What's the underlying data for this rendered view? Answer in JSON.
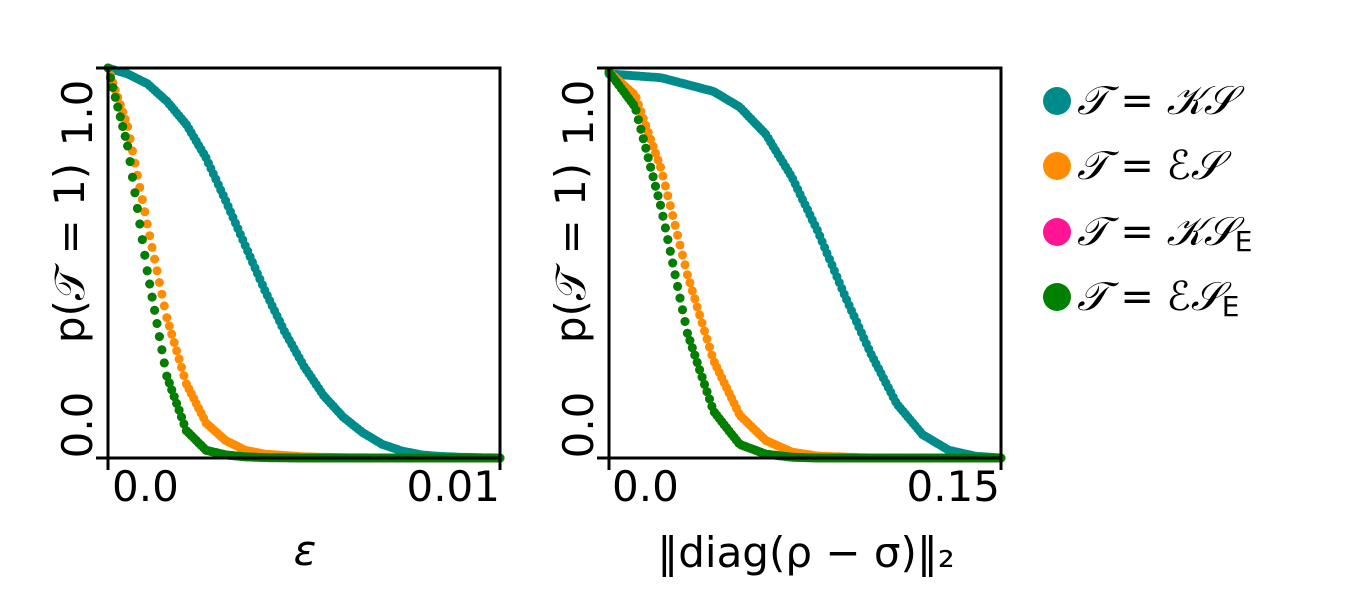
{
  "chart_data": [
    {
      "type": "scatter",
      "xlabel": "ε",
      "ylabel": "p(𝒯 = 1)",
      "xlim": [
        0.0,
        0.01
      ],
      "ylim": [
        0.0,
        1.0
      ],
      "xticks": [
        "0.0",
        "0.01"
      ],
      "yticks": [
        "0.0",
        "1.0"
      ],
      "grid": false,
      "series": [
        {
          "name": "𝒯 = 𝒦𝒮",
          "color": "#008b8b",
          "x": [
            0.0,
            0.0005,
            0.001,
            0.0015,
            0.002,
            0.0025,
            0.003,
            0.0035,
            0.004,
            0.0045,
            0.005,
            0.0055,
            0.006,
            0.0065,
            0.007,
            0.0075,
            0.008,
            0.0085,
            0.009,
            0.0095,
            0.01
          ],
          "y": [
            1.0,
            0.985,
            0.96,
            0.915,
            0.855,
            0.77,
            0.66,
            0.545,
            0.43,
            0.325,
            0.235,
            0.16,
            0.105,
            0.065,
            0.035,
            0.018,
            0.008,
            0.004,
            0.002,
            0.001,
            0.0
          ]
        },
        {
          "name": "𝒯 = ℰ𝒮",
          "color": "#ff8c00",
          "x": [
            0.0,
            0.0005,
            0.001,
            0.0015,
            0.002,
            0.0025,
            0.003,
            0.0035,
            0.004,
            0.005,
            0.006,
            0.007,
            0.008,
            0.01
          ],
          "y": [
            1.0,
            0.85,
            0.6,
            0.36,
            0.19,
            0.09,
            0.045,
            0.02,
            0.01,
            0.003,
            0.001,
            0.0,
            0.0,
            0.0
          ]
        },
        {
          "name": "𝒯 = 𝒦𝒮_E",
          "color": "#ff1493",
          "x": [
            0.0,
            0.0005,
            0.001,
            0.0015,
            0.002,
            0.0025,
            0.003,
            0.0035,
            0.004,
            0.005,
            0.006,
            0.008,
            0.01
          ],
          "y": [
            1.0,
            0.8,
            0.48,
            0.21,
            0.07,
            0.02,
            0.008,
            0.003,
            0.001,
            0.0,
            0.0,
            0.0,
            0.0
          ]
        },
        {
          "name": "𝒯 = ℰ𝒮_E",
          "color": "#008000",
          "x": [
            0.0,
            0.0005,
            0.001,
            0.0015,
            0.002,
            0.0025,
            0.003,
            0.0035,
            0.004,
            0.005,
            0.006,
            0.008,
            0.01
          ],
          "y": [
            1.0,
            0.8,
            0.48,
            0.21,
            0.07,
            0.02,
            0.008,
            0.003,
            0.001,
            0.0,
            0.0,
            0.0,
            0.0
          ]
        }
      ]
    },
    {
      "type": "scatter",
      "xlabel": "‖diag(ρ − σ)‖₂",
      "ylabel": "p(𝒯 = 1)",
      "xlim": [
        0.0,
        0.15
      ],
      "ylim": [
        0.0,
        1.0
      ],
      "xticks": [
        "0.0",
        "0.15"
      ],
      "yticks": [
        "0.0",
        "1.0"
      ],
      "grid": false,
      "series": [
        {
          "name": "𝒯 = 𝒦𝒮",
          "color": "#008b8b",
          "x": [
            0.0,
            0.02,
            0.04,
            0.05,
            0.06,
            0.07,
            0.08,
            0.09,
            0.1,
            0.11,
            0.12,
            0.13,
            0.14,
            0.15
          ],
          "y": [
            0.985,
            0.975,
            0.94,
            0.9,
            0.83,
            0.72,
            0.58,
            0.42,
            0.27,
            0.14,
            0.06,
            0.02,
            0.005,
            0.0
          ]
        },
        {
          "name": "𝒯 = ℰ𝒮",
          "color": "#ff8c00",
          "x": [
            0.0,
            0.01,
            0.02,
            0.03,
            0.04,
            0.05,
            0.06,
            0.07,
            0.08,
            0.1,
            0.15
          ],
          "y": [
            0.99,
            0.93,
            0.74,
            0.47,
            0.25,
            0.11,
            0.045,
            0.015,
            0.005,
            0.0,
            0.0
          ]
        },
        {
          "name": "𝒯 = 𝒦𝒮_E",
          "color": "#ff1493",
          "x": [
            0.0,
            0.01,
            0.02,
            0.03,
            0.04,
            0.05,
            0.06,
            0.07,
            0.08,
            0.1,
            0.15
          ],
          "y": [
            0.99,
            0.9,
            0.64,
            0.32,
            0.12,
            0.035,
            0.01,
            0.002,
            0.0,
            0.0,
            0.0
          ]
        },
        {
          "name": "𝒯 = ℰ𝒮_E",
          "color": "#008000",
          "x": [
            0.0,
            0.01,
            0.02,
            0.03,
            0.04,
            0.05,
            0.06,
            0.07,
            0.08,
            0.1,
            0.15
          ],
          "y": [
            0.99,
            0.9,
            0.64,
            0.32,
            0.12,
            0.035,
            0.01,
            0.002,
            0.0,
            0.0,
            0.0
          ]
        }
      ]
    }
  ],
  "legend": {
    "placement": "right",
    "entries": [
      {
        "prefix": "𝒯 = 𝒦𝒮",
        "subscript": "",
        "color": "#008b8b"
      },
      {
        "prefix": "𝒯 = ℰ𝒮",
        "subscript": "",
        "color": "#ff8c00"
      },
      {
        "prefix": "𝒯 = 𝒦𝒮",
        "subscript": "E",
        "color": "#ff1493"
      },
      {
        "prefix": "𝒯 = ℰ𝒮",
        "subscript": "E",
        "color": "#008000"
      }
    ]
  }
}
